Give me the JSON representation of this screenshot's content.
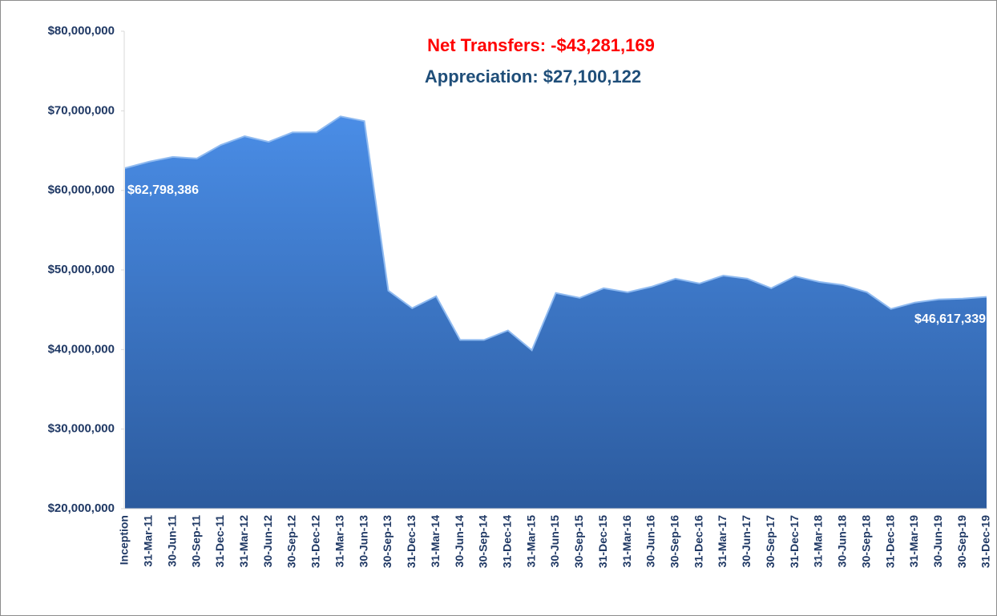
{
  "chart_data": {
    "type": "area",
    "annotations": [
      "Net Transfers: -$43,281,169",
      "Appreciation: $27,100,122"
    ],
    "categories": [
      "Inception",
      "31-Mar-11",
      "30-Jun-11",
      "30-Sep-11",
      "31-Dec-11",
      "31-Mar-12",
      "30-Jun-12",
      "30-Sep-12",
      "31-Dec-12",
      "31-Mar-13",
      "30-Jun-13",
      "30-Sep-13",
      "31-Dec-13",
      "31-Mar-14",
      "30-Jun-14",
      "30-Sep-14",
      "31-Dec-14",
      "31-Mar-15",
      "30-Jun-15",
      "30-Sep-15",
      "31-Dec-15",
      "31-Mar-16",
      "30-Jun-16",
      "30-Sep-16",
      "31-Dec-16",
      "31-Mar-17",
      "30-Jun-17",
      "30-Sep-17",
      "31-Dec-17",
      "31-Mar-18",
      "30-Jun-18",
      "30-Sep-18",
      "31-Dec-18",
      "31-Mar-19",
      "30-Jun-19",
      "30-Sep-19",
      "31-Dec-19"
    ],
    "values": [
      62798386,
      63600000,
      64200000,
      64000000,
      65700000,
      66800000,
      66100000,
      67300000,
      67300000,
      69300000,
      68700000,
      47400000,
      45200000,
      46700000,
      41200000,
      41200000,
      42400000,
      39900000,
      47100000,
      46500000,
      47700000,
      47200000,
      47900000,
      48900000,
      48300000,
      49300000,
      48900000,
      47700000,
      49200000,
      48500000,
      48100000,
      47200000,
      45100000,
      45900000,
      46300000,
      46400000,
      46617339
    ],
    "value_labels": [
      "$62,798,386",
      null,
      null,
      null,
      null,
      null,
      null,
      null,
      null,
      null,
      null,
      null,
      null,
      null,
      null,
      null,
      null,
      null,
      null,
      null,
      null,
      null,
      null,
      null,
      null,
      null,
      null,
      null,
      null,
      null,
      null,
      null,
      null,
      null,
      null,
      null,
      "$46,617,339"
    ],
    "color": "#3f7fd6",
    "ylim": [
      20000000,
      80000000
    ],
    "yticks": [
      {
        "value": 20000000,
        "label": "$20,000,000"
      },
      {
        "value": 30000000,
        "label": "$30,000,000"
      },
      {
        "value": 40000000,
        "label": "$40,000,000"
      },
      {
        "value": 50000000,
        "label": "$50,000,000"
      },
      {
        "value": 60000000,
        "label": "$60,000,000"
      },
      {
        "value": 70000000,
        "label": "$70,000,000"
      },
      {
        "value": 80000000,
        "label": "$80,000,000"
      }
    ]
  }
}
